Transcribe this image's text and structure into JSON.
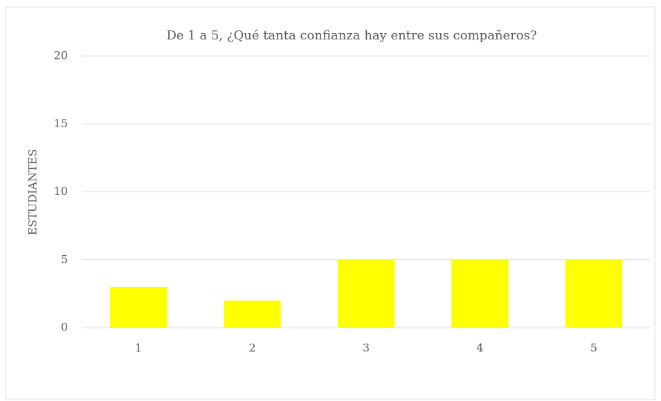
{
  "chart_data": {
    "type": "bar",
    "title": "De 1 a 5, ¿Qué tanta confianza hay entre sus compañeros?",
    "ylabel": "ESTUDIANTES",
    "categories": [
      "1",
      "2",
      "3",
      "4",
      "5"
    ],
    "values": [
      3,
      2,
      5,
      5,
      5
    ],
    "color": "#ffff00",
    "ylim": [
      0,
      20
    ],
    "yticks": [
      0,
      5,
      10,
      15,
      20
    ],
    "grid": true
  }
}
